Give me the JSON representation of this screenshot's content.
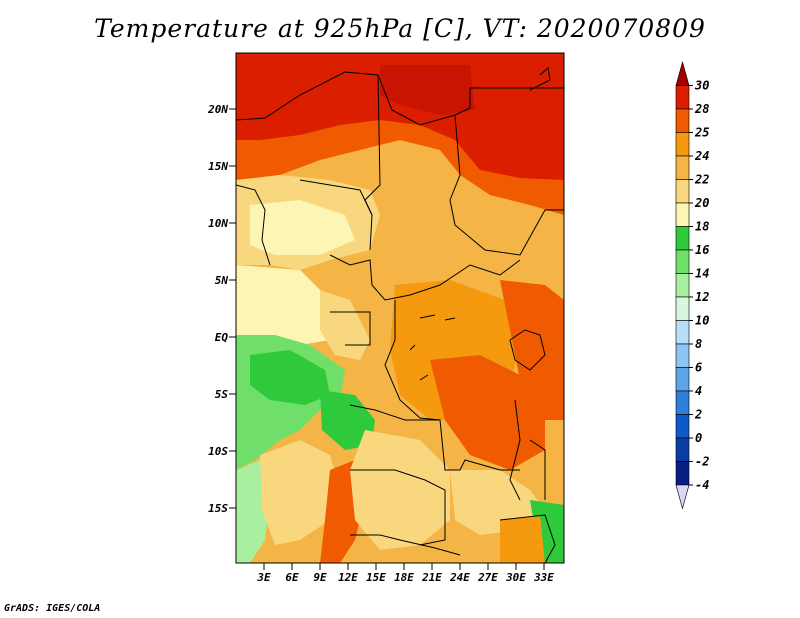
{
  "title": "Temperature at 925hPa [C], VT: 2020070809",
  "footer": "GrADS: IGES/COLA",
  "map": {
    "lat_labels": [
      "20N",
      "15N",
      "10N",
      "5N",
      "EQ",
      "5S",
      "10S",
      "15S"
    ],
    "lon_labels": [
      "3E",
      "6E",
      "9E",
      "12E",
      "15E",
      "18E",
      "21E",
      "24E",
      "27E",
      "30E",
      "33E"
    ]
  },
  "colorbar": {
    "labels": [
      "30",
      "28",
      "25",
      "24",
      "22",
      "20",
      "18",
      "16",
      "14",
      "12",
      "10",
      "8",
      "6",
      "4",
      "2",
      "0",
      "-2",
      "-4"
    ],
    "colors": [
      "#a50000",
      "#dc1e00",
      "#f05a00",
      "#f59a0f",
      "#f5b446",
      "#f9d77e",
      "#fdf5b4",
      "#2fc93c",
      "#6fdf6a",
      "#a8f0a0",
      "#d9f7e0",
      "#b8dff7",
      "#8ec5f0",
      "#5fa5e8",
      "#2f80dd",
      "#0f5ac8",
      "#0a3ca5",
      "#0a1e82",
      "#d8d8f5"
    ]
  }
}
